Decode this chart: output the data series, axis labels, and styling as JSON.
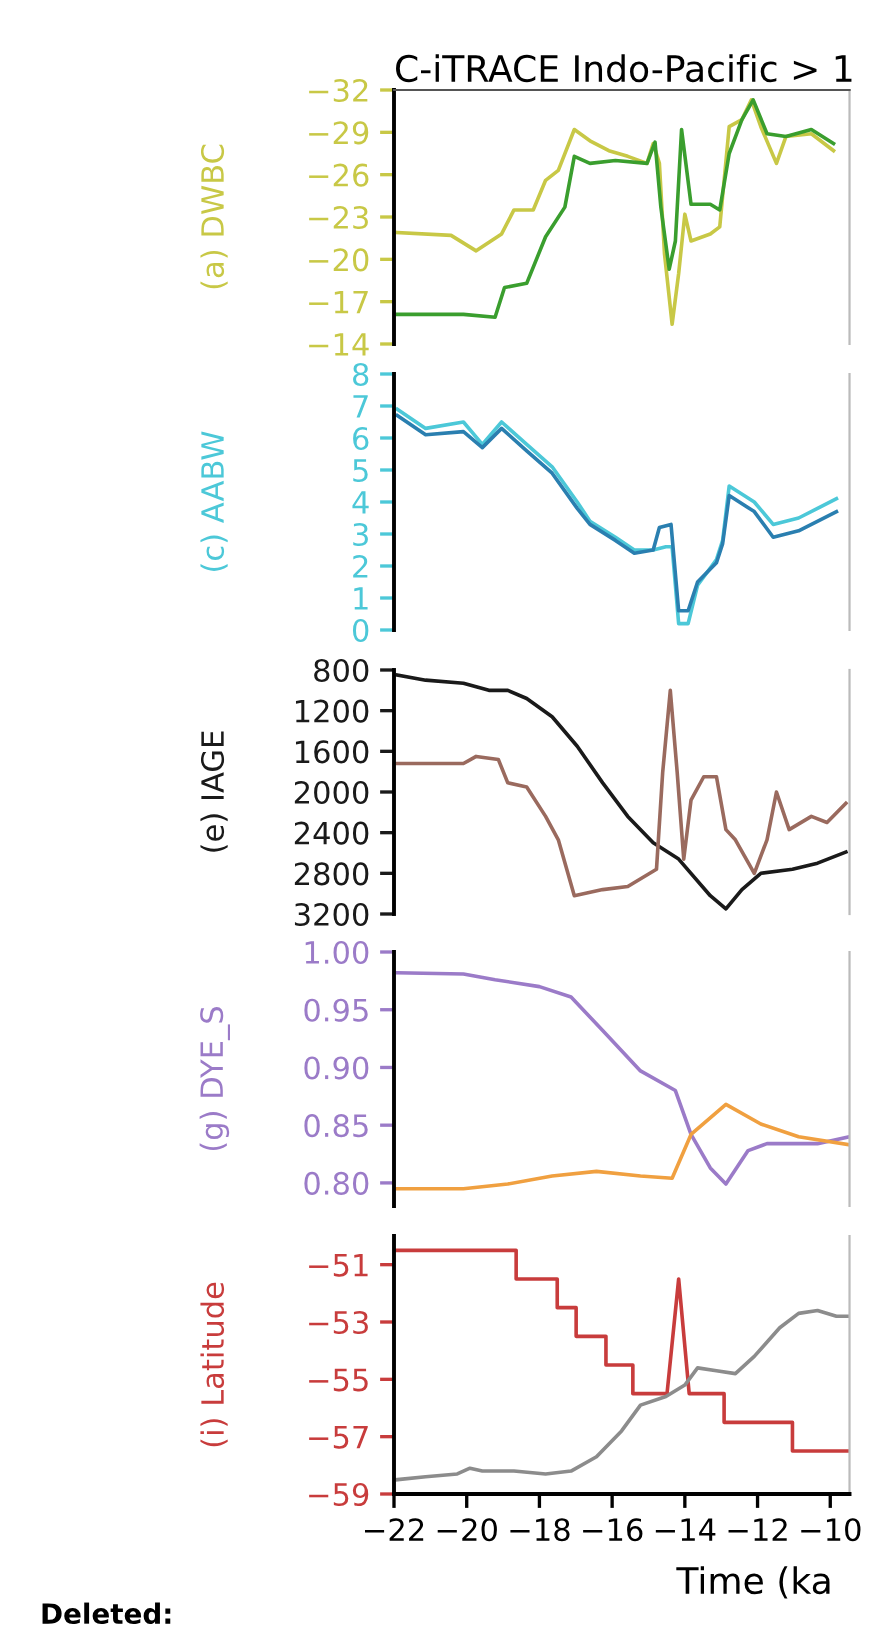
{
  "chart_data": [
    {
      "type": "line",
      "title": "C-iTRACE Indo-Pacific > 1",
      "ylabel": "(a) DWBC",
      "xlim": [
        -22,
        -9.47
      ],
      "ylim": [
        -14,
        -32
      ],
      "yticks": [
        -32,
        -29,
        -26,
        -23,
        -20,
        -17,
        -14
      ],
      "tick_labels": "y",
      "grid": false,
      "series": [
        {
          "color": "#c8c846",
          "x": [
            -21.91,
            -20.43,
            -19.74,
            -19.04,
            -18.7,
            -18.17,
            -17.83,
            -17.48,
            -17.04,
            -16.61,
            -16.09,
            -15.57,
            -15.04,
            -14.87,
            -14.7,
            -14.56,
            -14.35,
            -14.17,
            -14.0,
            -13.83,
            -13.3,
            -13.04,
            -12.78,
            -12.43,
            -12.17,
            -11.91,
            -11.48,
            -11.22,
            -10.52,
            -9.91
          ],
          "values": [
            -21.9,
            -21.7,
            -20.6,
            -21.8,
            -23.5,
            -23.5,
            -25.6,
            -26.3,
            -29.2,
            -28.4,
            -27.7,
            -27.3,
            -26.8,
            -28.2,
            -26.8,
            -20.4,
            -15.4,
            -19.0,
            -23.2,
            -21.3,
            -21.8,
            -22.3,
            -29.4,
            -29.9,
            -31.3,
            -29.4,
            -26.8,
            -28.7,
            -28.9,
            -27.7
          ]
        },
        {
          "color": "#3a9e2e",
          "x": [
            -21.91,
            -20.09,
            -19.22,
            -18.96,
            -18.35,
            -17.83,
            -17.3,
            -17.04,
            -16.61,
            -15.91,
            -15.04,
            -14.82,
            -14.66,
            -14.43,
            -14.26,
            -14.09,
            -13.83,
            -13.3,
            -13.04,
            -12.78,
            -12.43,
            -12.12,
            -11.74,
            -11.22,
            -10.52,
            -9.91
          ],
          "values": [
            -16.1,
            -16.1,
            -15.9,
            -18.0,
            -18.3,
            -21.6,
            -23.7,
            -27.3,
            -26.8,
            -27.0,
            -26.8,
            -28.3,
            -23.7,
            -19.3,
            -21.3,
            -29.2,
            -23.9,
            -23.9,
            -23.5,
            -27.5,
            -29.9,
            -31.3,
            -28.9,
            -28.7,
            -29.2,
            -28.2
          ]
        }
      ]
    },
    {
      "type": "line",
      "ylabel": "(c) AABW",
      "xlim": [
        -22,
        -9.47
      ],
      "ylim": [
        0,
        8
      ],
      "yticks": [
        0,
        1,
        2,
        3,
        4,
        5,
        6,
        7,
        8
      ],
      "tick_labels": "y",
      "grid": false,
      "series": [
        {
          "color": "#4cc8d8",
          "x": [
            -21.91,
            -21.13,
            -20.09,
            -19.57,
            -19.04,
            -18.35,
            -17.65,
            -16.96,
            -16.61,
            -15.91,
            -15.39,
            -14.87,
            -14.52,
            -14.35,
            -14.17,
            -13.91,
            -13.65,
            -13.13,
            -12.96,
            -12.78,
            -12.09,
            -11.57,
            -10.87,
            -9.83
          ],
          "values": [
            6.9,
            6.3,
            6.5,
            5.8,
            6.5,
            5.8,
            5.1,
            4.0,
            3.4,
            2.9,
            2.5,
            2.5,
            2.6,
            2.6,
            0.2,
            0.2,
            1.4,
            2.2,
            2.8,
            4.5,
            4.0,
            3.3,
            3.5,
            4.1
          ]
        },
        {
          "color": "#2a7fb0",
          "x": [
            -21.91,
            -21.13,
            -20.09,
            -19.57,
            -19.04,
            -18.35,
            -17.65,
            -16.96,
            -16.61,
            -15.91,
            -15.39,
            -14.87,
            -14.7,
            -14.38,
            -14.17,
            -13.91,
            -13.65,
            -13.13,
            -12.96,
            -12.78,
            -12.09,
            -11.57,
            -10.87,
            -9.83
          ],
          "values": [
            6.7,
            6.1,
            6.2,
            5.7,
            6.3,
            5.6,
            4.9,
            3.8,
            3.3,
            2.8,
            2.4,
            2.5,
            3.2,
            3.3,
            0.6,
            0.6,
            1.5,
            2.1,
            2.7,
            4.2,
            3.7,
            2.9,
            3.1,
            3.7
          ]
        }
      ]
    },
    {
      "type": "line",
      "ylabel": "(e) IAGE",
      "xlim": [
        -22,
        -9.47
      ],
      "ylim": [
        3200,
        800
      ],
      "yticks": [
        800,
        1200,
        1600,
        2000,
        2400,
        2800,
        3200
      ],
      "tick_labels": "y",
      "grid": false,
      "series": [
        {
          "color": "#1a1a1a",
          "x": [
            -21.91,
            -21.13,
            -20.09,
            -19.39,
            -18.87,
            -18.35,
            -17.65,
            -16.96,
            -16.26,
            -15.57,
            -14.87,
            -14.17,
            -13.3,
            -12.87,
            -12.43,
            -11.91,
            -11.04,
            -10.35,
            -9.57
          ],
          "values": [
            850,
            900,
            930,
            1000,
            1000,
            1080,
            1260,
            1550,
            1910,
            2240,
            2500,
            2660,
            3020,
            3150,
            2960,
            2800,
            2760,
            2700,
            2590
          ]
        },
        {
          "color": "#9a6a5e",
          "x": [
            -21.91,
            -20.09,
            -19.74,
            -19.13,
            -18.87,
            -18.35,
            -17.83,
            -17.48,
            -17.04,
            -16.26,
            -15.57,
            -14.78,
            -14.61,
            -14.4,
            -14.21,
            -14.03,
            -13.83,
            -13.48,
            -13.13,
            -12.87,
            -12.61,
            -12.09,
            -11.74,
            -11.48,
            -11.13,
            -10.52,
            -10.09,
            -9.57
          ],
          "values": [
            1720,
            1720,
            1650,
            1680,
            1910,
            1950,
            2240,
            2470,
            3020,
            2960,
            2930,
            2760,
            1810,
            1000,
            1810,
            2660,
            2080,
            1850,
            1850,
            2370,
            2470,
            2800,
            2470,
            2000,
            2370,
            2240,
            2300,
            2110
          ]
        }
      ]
    },
    {
      "type": "line",
      "ylabel": "(g) DYE_S",
      "xlim": [
        -22,
        -9.47
      ],
      "ylim": [
        0.78,
        1.0
      ],
      "yticks": [
        {
          "value": 0.8,
          "label": "0.80"
        },
        {
          "value": 0.85,
          "label": "0.85"
        },
        {
          "value": 0.9,
          "label": "0.90"
        },
        {
          "value": 0.95,
          "label": "0.95"
        },
        {
          "value": 1.0,
          "label": "1.00"
        }
      ],
      "tick_labels": "y",
      "grid": false,
      "series": [
        {
          "color": "#9b7bc8",
          "x": [
            -21.91,
            -20.09,
            -19.22,
            -18.0,
            -17.13,
            -16.26,
            -15.22,
            -14.26,
            -13.83,
            -13.3,
            -12.87,
            -12.26,
            -11.74,
            -10.35,
            -9.48
          ],
          "values": [
            0.982,
            0.981,
            0.976,
            0.97,
            0.961,
            0.932,
            0.897,
            0.88,
            0.842,
            0.813,
            0.799,
            0.828,
            0.834,
            0.834,
            0.84
          ]
        },
        {
          "color": "#f0a040",
          "x": [
            -21.91,
            -20.09,
            -18.87,
            -17.65,
            -16.43,
            -15.22,
            -14.35,
            -13.83,
            -12.87,
            -11.91,
            -10.87,
            -9.48
          ],
          "values": [
            0.795,
            0.795,
            0.799,
            0.806,
            0.81,
            0.806,
            0.804,
            0.842,
            0.868,
            0.851,
            0.84,
            0.833
          ]
        }
      ]
    },
    {
      "type": "line",
      "ylabel": "(i) Latitude",
      "xlabel": "Time (ka",
      "xlim": [
        -22,
        -9.47
      ],
      "ylim": [
        -59,
        -50
      ],
      "yticks": [
        -59,
        -57,
        -55,
        -53,
        -51
      ],
      "xticks": [
        -22,
        -20,
        -18,
        -16,
        -14,
        -12,
        -10
      ],
      "grid": false,
      "annotations": [
        "Deleted:"
      ],
      "series": [
        {
          "color": "#c83c3c",
          "x": [
            -22,
            -18.64,
            -18.64,
            -17.51,
            -17.51,
            -16.99,
            -16.99,
            -16.17,
            -16.17,
            -15.43,
            -15.43,
            -14.49,
            -14.17,
            -13.88,
            -12.92,
            -12.92,
            -11.04,
            -11.04,
            -9.47
          ],
          "values": [
            -50.5,
            -50.5,
            -51.5,
            -51.5,
            -52.5,
            -52.5,
            -53.5,
            -53.5,
            -54.5,
            -54.5,
            -55.5,
            -55.5,
            -51.5,
            -55.5,
            -55.5,
            -56.5,
            -56.5,
            -57.5,
            -57.5
          ]
        },
        {
          "color": "#8c8c8c",
          "x": [
            -21.91,
            -21.13,
            -20.26,
            -19.91,
            -19.57,
            -18.7,
            -17.83,
            -17.13,
            -16.43,
            -15.74,
            -15.22,
            -14.52,
            -14.0,
            -13.65,
            -13.13,
            -12.61,
            -12.09,
            -11.39,
            -10.87,
            -10.35,
            -9.83,
            -9.48
          ],
          "values": [
            -58.5,
            -58.4,
            -58.3,
            -58.1,
            -58.2,
            -58.2,
            -58.3,
            -58.2,
            -57.7,
            -56.8,
            -55.9,
            -55.6,
            -55.2,
            -54.6,
            -54.7,
            -54.8,
            -54.2,
            -53.2,
            -52.7,
            -52.6,
            -52.8,
            -52.8
          ]
        }
      ]
    }
  ]
}
